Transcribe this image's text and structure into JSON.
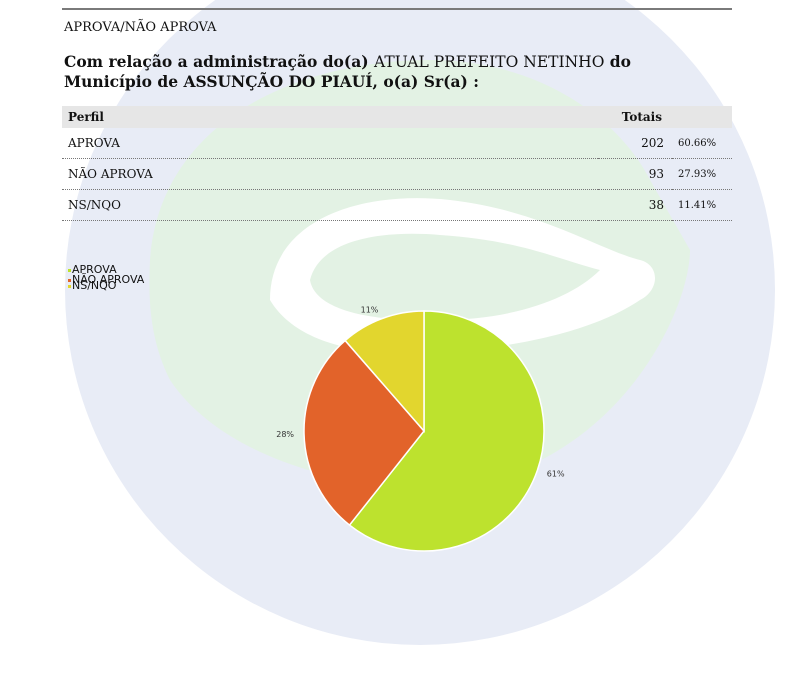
{
  "section_label": "APROVA/NÃO APROVA",
  "question": {
    "part1": "Com relação a administração do(a) ",
    "part2": "ATUAL PREFEITO NETINHO",
    "part3": " do Município de ASSUNÇÃO DO PIAUÍ, o(a) Sr(a) :"
  },
  "table": {
    "header_profile": "Perfil",
    "header_totals": "Totais",
    "rows": [
      {
        "label": "APROVA",
        "count": "202",
        "pct": "60.66%"
      },
      {
        "label": "NÃO APROVA",
        "count": "93",
        "pct": "27.93%"
      },
      {
        "label": "NS/NQO",
        "count": "38",
        "pct": "11.41%"
      }
    ]
  },
  "colors": {
    "aprova": "#bde22e",
    "nao_aprova": "#e2632a",
    "ns_nqo": "#e2d62e",
    "watermark_blue": "#e7ebf5",
    "watermark_green": "#e4f2e6"
  },
  "chart_data": {
    "type": "pie",
    "categories": [
      "APROVA",
      "NÃO APROVA",
      "NS/NQO"
    ],
    "values": [
      60.66,
      27.93,
      11.41
    ],
    "data_labels": [
      "61%",
      "28%",
      "11%"
    ],
    "legend": [
      "APROVA",
      "NÃO APROVA",
      "NS/NQO"
    ],
    "legend_placement": "top-left",
    "title": ""
  }
}
